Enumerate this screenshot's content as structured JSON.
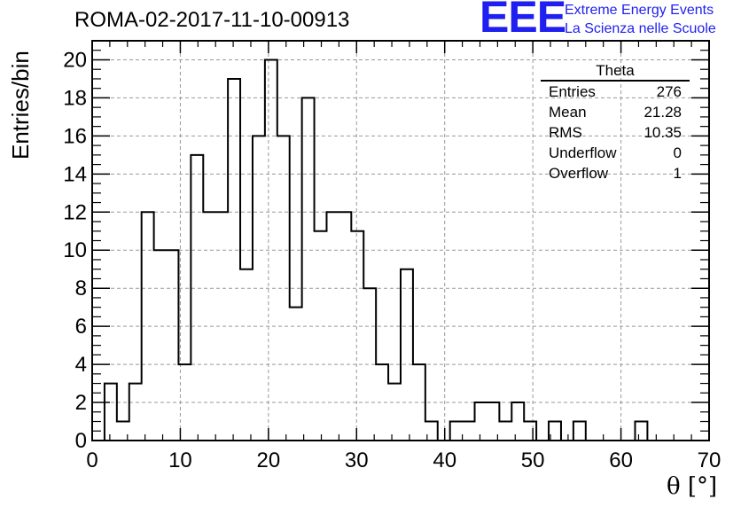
{
  "header": {
    "title": "ROMA-02-2017-11-10-00913",
    "logo_text": "EEE",
    "logo_line1": "Extreme Energy Events",
    "logo_line2": "La Scienza nelle Scuole",
    "brand_color": "#1f1ff0"
  },
  "stats_box": {
    "title": "Theta",
    "rows": [
      {
        "label": "Entries",
        "value": "276"
      },
      {
        "label": "Mean",
        "value": "21.28"
      },
      {
        "label": "RMS",
        "value": "10.35"
      },
      {
        "label": "Underflow",
        "value": "0"
      },
      {
        "label": "Overflow",
        "value": "1"
      }
    ]
  },
  "chart_data": {
    "type": "histogram",
    "xlabel": "θ [°]",
    "ylabel": "Entries/bin",
    "xlim": [
      0,
      70
    ],
    "ylim": [
      0,
      21
    ],
    "bin_width": 1.4,
    "bin_start": 1.4,
    "values": [
      3,
      1,
      3,
      12,
      10,
      10,
      4,
      15,
      12,
      12,
      19,
      9,
      16,
      20,
      16,
      7,
      18,
      11,
      12,
      12,
      11,
      8,
      4,
      3,
      9,
      4,
      1,
      0,
      1,
      1,
      2,
      2,
      1,
      2,
      1,
      0,
      1,
      0,
      1,
      0,
      0,
      0,
      0,
      1,
      0
    ],
    "x_ticks": [
      0,
      10,
      20,
      30,
      40,
      50,
      60,
      70
    ],
    "y_ticks": [
      0,
      2,
      4,
      6,
      8,
      10,
      12,
      14,
      16,
      18,
      20
    ],
    "grid": true,
    "line_color": "#000000"
  }
}
